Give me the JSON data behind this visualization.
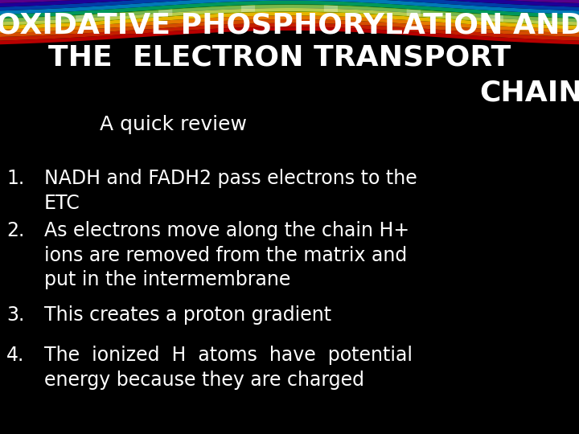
{
  "title_line1": "OXIDATIVE PHOSPHORYLATION AND",
  "title_line2": "THE  ELECTRON TRANSPORT",
  "title_line3": "CHAIN",
  "subtitle": "A quick review",
  "point1_num": "1.",
  "point1_text": "NADH and FADH2 pass electrons to the\n    ETC",
  "point2_num": "2.",
  "point2_text": "As electrons move along the chain H+\n    ions are removed from the matrix and\n    put in the intermembrane",
  "point3_num": "3.",
  "point3_text": "This creates a proton gradient",
  "point4_num": "4.",
  "point4_text": "The  ionized  H  atoms  have  potential\n    energy because they are charged",
  "bg_color": "#000000",
  "text_color": "#ffffff",
  "title_fontsize": 26,
  "subtitle_fontsize": 18,
  "body_fontsize": 17,
  "swoosh_colors": [
    "#cc0000",
    "#dd4400",
    "#ee8800",
    "#ddcc00",
    "#88bb00",
    "#009900",
    "#00aa88",
    "#0066cc",
    "#0033aa",
    "#330099"
  ],
  "swoosh_highlight": [
    "#ff4400",
    "#ff8800",
    "#ffcc00",
    "#ccee00",
    "#44cc44",
    "#00cccc",
    "#0088ff",
    "#4444ff",
    "#8800cc"
  ]
}
